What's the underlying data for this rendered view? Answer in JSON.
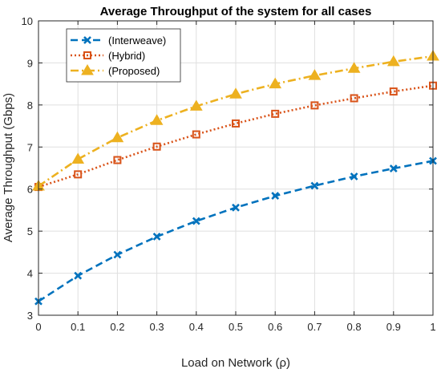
{
  "chart_data": {
    "type": "line",
    "title": "Average Throughput of the system for all cases",
    "xlabel": "Load on Network (ρ)",
    "ylabel": "Average Throughput (Gbps)",
    "xlim": [
      0,
      1
    ],
    "ylim": [
      3,
      10
    ],
    "xticks": [
      "0",
      "0.1",
      "0.2",
      "0.3",
      "0.4",
      "0.5",
      "0.6",
      "0.7",
      "0.8",
      "0.9",
      "1"
    ],
    "yticks": [
      "3",
      "4",
      "5",
      "6",
      "7",
      "8",
      "9",
      "10"
    ],
    "grid": true,
    "legend_position": "top-left",
    "x": [
      0,
      0.1,
      0.2,
      0.3,
      0.4,
      0.5,
      0.6,
      0.7,
      0.8,
      0.9,
      1.0
    ],
    "series": [
      {
        "name": "(Interweave)",
        "color": "#0072BD",
        "line_style": "dashed",
        "marker": "x",
        "values": [
          3.33,
          3.94,
          4.44,
          4.87,
          5.24,
          5.56,
          5.84,
          6.08,
          6.3,
          6.49,
          6.67
        ]
      },
      {
        "name": "(Hybrid)",
        "color": "#D95319",
        "line_style": "dotted",
        "marker": "square",
        "values": [
          6.05,
          6.35,
          6.69,
          7.01,
          7.3,
          7.56,
          7.79,
          7.99,
          8.16,
          8.32,
          8.46
        ]
      },
      {
        "name": "(Proposed)",
        "color": "#EDB120",
        "line_style": "dashdot",
        "marker": "triangle",
        "values": [
          6.07,
          6.71,
          7.22,
          7.63,
          7.97,
          8.26,
          8.5,
          8.7,
          8.87,
          9.03,
          9.16
        ]
      }
    ]
  }
}
